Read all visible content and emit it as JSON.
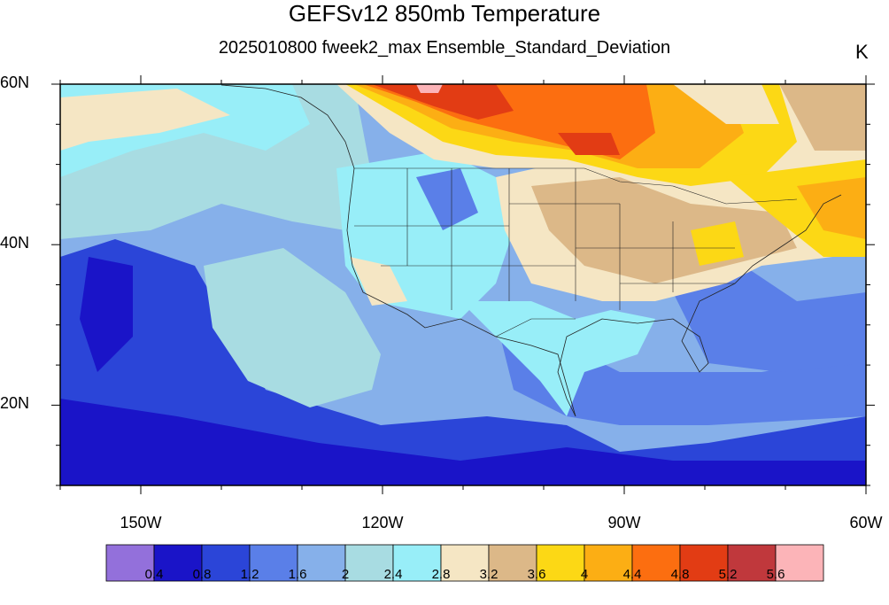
{
  "title": "GEFSv12 850mb Temperature",
  "subtitle": "2025010800 fweek2_max Ensemble_Standard_Deviation",
  "units": "K",
  "map": {
    "lon_range": [
      -160,
      -60
    ],
    "lat_range": [
      10,
      60
    ],
    "lat_ticks": [
      {
        "value": 60,
        "label": "60N"
      },
      {
        "value": 40,
        "label": "40N"
      },
      {
        "value": 20,
        "label": "20N"
      }
    ],
    "lon_ticks": [
      {
        "value": -150,
        "label": "150W"
      },
      {
        "value": -120,
        "label": "120W"
      },
      {
        "value": -90,
        "label": "90W"
      },
      {
        "value": -60,
        "label": "60W"
      }
    ]
  },
  "colorbar": {
    "colors": [
      "#9370db",
      "#1a14c8",
      "#2b45d8",
      "#5a7fe8",
      "#86b0ea",
      "#a8dce2",
      "#98eef8",
      "#f5e6c4",
      "#dcb888",
      "#fcd815",
      "#fcae14",
      "#fc6e10",
      "#e23c14",
      "#c0383c",
      "#fcb4b8"
    ],
    "labels": [
      "0.4",
      "0.8",
      "1.2",
      "1.6",
      "2",
      "2.4",
      "2.8",
      "3.2",
      "3.6",
      "4",
      "4.4",
      "4.8",
      "5.2",
      "5.6"
    ]
  }
}
